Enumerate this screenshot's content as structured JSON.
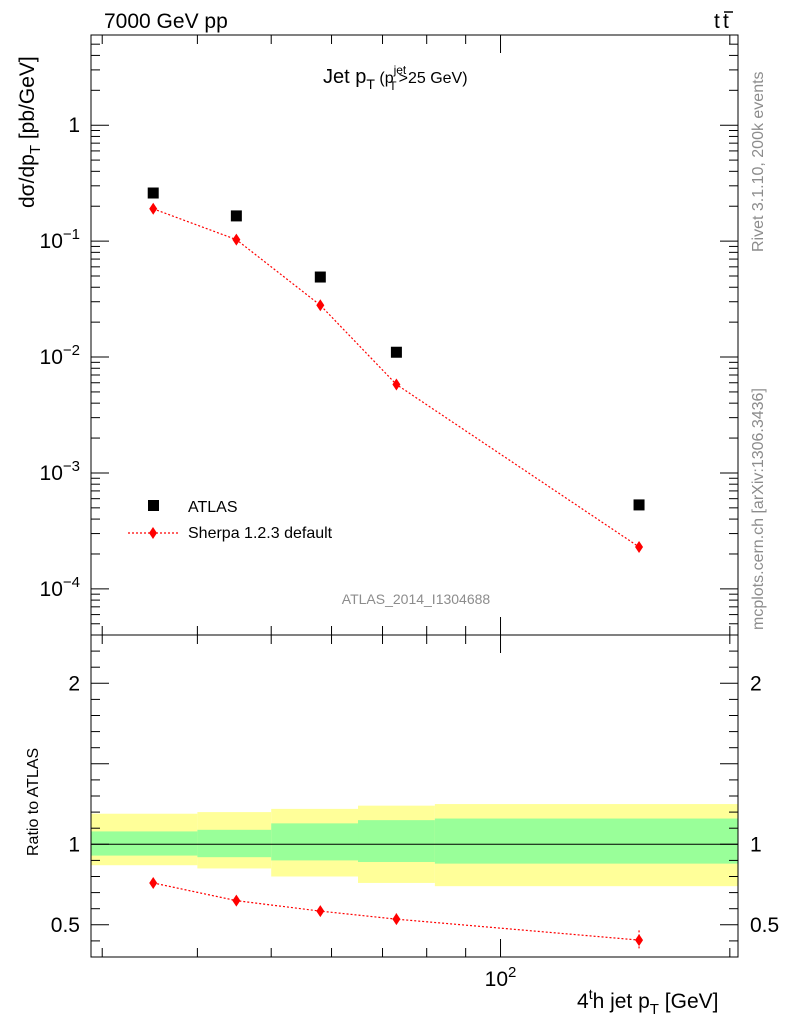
{
  "header": {
    "left": "7000 GeV pp",
    "right_main": "t",
    "right_bar": "t"
  },
  "side_labels": {
    "rivet": "Rivet 3.1.10,  200k events",
    "mcplots": "mcplots.cern.ch [arXiv:1306.3436]"
  },
  "chart_data": [
    {
      "type": "scatter",
      "title": {
        "main": "Jet p",
        "main_sub": "T",
        "open": " (p",
        "sup": "jet",
        "sub": "T",
        "close": ">25 GeV)"
      },
      "ylabel": {
        "a": "dσ/dp",
        "sub": "T",
        "b": " [pb/GeV]"
      },
      "yscale": "log",
      "ylim": [
        4e-05,
        6
      ],
      "xscale": "log",
      "xlim": [
        29,
        205
      ],
      "yticks": [
        {
          "value": 0.0001,
          "base": "10",
          "exp": "−4"
        },
        {
          "value": 0.001,
          "base": "10",
          "exp": "−3"
        },
        {
          "value": 0.01,
          "base": "10",
          "exp": "−2"
        },
        {
          "value": 0.1,
          "base": "10",
          "exp": "−1"
        },
        {
          "value": 1,
          "base": "1",
          "exp": ""
        }
      ],
      "watermark": "ATLAS_2014_I1304688",
      "legend": {
        "position": "bottom-left",
        "atlas": "ATLAS",
        "sherpa": "Sherpa 1.2.3 default"
      },
      "series": [
        {
          "name": "ATLAS",
          "x": [
            35,
            45,
            58,
            73,
            152
          ],
          "y": [
            0.26,
            0.165,
            0.049,
            0.011,
            0.00053
          ]
        },
        {
          "name": "Sherpa 1.2.3 default",
          "x": [
            35,
            45,
            58,
            73,
            152
          ],
          "y": [
            0.19,
            0.103,
            0.028,
            0.0058,
            0.00023
          ]
        }
      ]
    },
    {
      "type": "ratio",
      "ylabel": "Ratio to ATLAS",
      "ylim": [
        0.3,
        2.3
      ],
      "xscale": "log",
      "xlim": [
        29,
        205
      ],
      "yticks": [
        {
          "value": 0.5,
          "label": "0.5"
        },
        {
          "value": 1,
          "label": "1"
        },
        {
          "value": 2,
          "label": "2"
        }
      ],
      "xticks": [
        {
          "value": 100,
          "base": "10",
          "exp": "2"
        }
      ],
      "xlabel": {
        "a": "4",
        "sup": "t",
        "b": "h jet p",
        "sub": "T",
        "c": " [GeV]"
      },
      "bands": [
        {
          "x": [
            29,
            40
          ],
          "yellow": [
            0.87,
            1.19
          ],
          "green": [
            0.93,
            1.08
          ]
        },
        {
          "x": [
            40,
            50
          ],
          "yellow": [
            0.85,
            1.2
          ],
          "green": [
            0.92,
            1.09
          ]
        },
        {
          "x": [
            50,
            65
          ],
          "yellow": [
            0.8,
            1.22
          ],
          "green": [
            0.9,
            1.13
          ]
        },
        {
          "x": [
            65,
            82
          ],
          "yellow": [
            0.76,
            1.24
          ],
          "green": [
            0.89,
            1.15
          ]
        },
        {
          "x": [
            82,
            205
          ],
          "yellow": [
            0.74,
            1.25
          ],
          "green": [
            0.88,
            1.16
          ]
        }
      ],
      "series": [
        {
          "name": "Sherpa 1.2.3 default",
          "x": [
            35,
            45,
            58,
            73,
            152
          ],
          "y": [
            0.76,
            0.65,
            0.585,
            0.535,
            0.405
          ],
          "err": [
            0.012,
            0.015,
            0.02,
            0.035,
            0.06
          ]
        }
      ]
    }
  ]
}
